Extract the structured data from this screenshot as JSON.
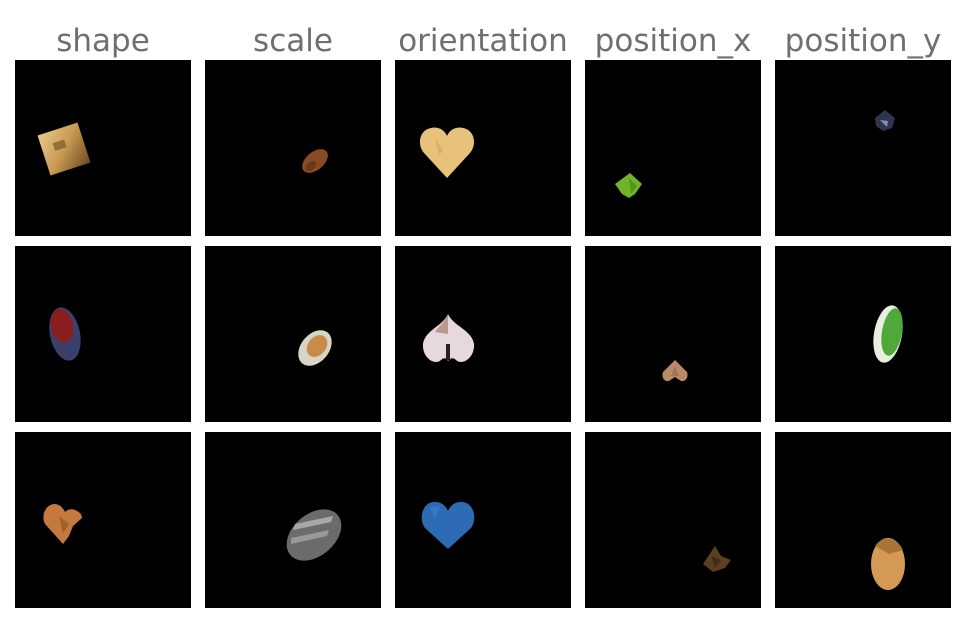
{
  "columns": [
    {
      "title": "shape"
    },
    {
      "title": "scale"
    },
    {
      "title": "orientation"
    },
    {
      "title": "position_x"
    },
    {
      "title": "position_y"
    }
  ],
  "cells": [
    {
      "row": 1,
      "column": "shape",
      "object": "square",
      "colors": [
        "#c99a52",
        "#e6c98c",
        "#6b4a22"
      ]
    },
    {
      "row": 1,
      "column": "scale",
      "object": "ellipse",
      "colors": [
        "#8a4a24",
        "#5c2f14"
      ]
    },
    {
      "row": 1,
      "column": "orientation",
      "object": "heart",
      "colors": [
        "#e8c27a",
        "#d9a95c"
      ]
    },
    {
      "row": 1,
      "column": "position_x",
      "object": "heart",
      "colors": [
        "#6fb52a",
        "#4e8f1a"
      ]
    },
    {
      "row": 1,
      "column": "position_y",
      "object": "heart",
      "colors": [
        "#2f3550",
        "#8f99b8"
      ]
    },
    {
      "row": 2,
      "column": "shape",
      "object": "ellipse",
      "colors": [
        "#8a1e1e",
        "#3b3f6b"
      ]
    },
    {
      "row": 2,
      "column": "scale",
      "object": "ellipse",
      "colors": [
        "#c98a4a",
        "#d8d4c6"
      ]
    },
    {
      "row": 2,
      "column": "orientation",
      "object": "heart",
      "colors": [
        "#e6d8dc",
        "#b08a7a"
      ]
    },
    {
      "row": 2,
      "column": "position_x",
      "object": "heart",
      "colors": [
        "#b88a68",
        "#8c6548"
      ]
    },
    {
      "row": 2,
      "column": "position_y",
      "object": "ellipse",
      "colors": [
        "#4fa83a",
        "#e8eee0"
      ]
    },
    {
      "row": 3,
      "column": "shape",
      "object": "heart",
      "colors": [
        "#c47a3e",
        "#9a5a2a"
      ]
    },
    {
      "row": 3,
      "column": "scale",
      "object": "ellipse",
      "colors": [
        "#6b6b6b",
        "#b8b8b8"
      ]
    },
    {
      "row": 3,
      "column": "orientation",
      "object": "heart",
      "colors": [
        "#2e6bb5",
        "#3d7fcc"
      ]
    },
    {
      "row": 3,
      "column": "position_x",
      "object": "heart",
      "colors": [
        "#5a4020",
        "#3a2a14"
      ]
    },
    {
      "row": 3,
      "column": "position_y",
      "object": "ellipse",
      "colors": [
        "#d49a55",
        "#a06a30"
      ]
    }
  ]
}
